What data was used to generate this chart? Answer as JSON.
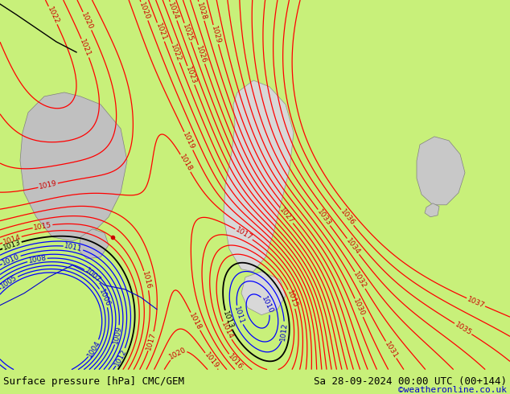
{
  "title_left": "Surface pressure [hPa] CMC/GEM",
  "title_right": "Sa 28-09-2024 00:00 UTC (00+144)",
  "credit": "©weatheronline.co.uk",
  "bg_color": "#c8f07a",
  "contour_color_red": "#ff0000",
  "contour_color_black": "#000000",
  "contour_color_blue": "#0000ff",
  "label_color_red": "#cc0000",
  "label_color_black": "#000000",
  "label_color_blue": "#0000cc",
  "credit_color": "#0000cc",
  "bottom_text_color": "#000000",
  "figsize": [
    6.34,
    4.9
  ],
  "dpi": 100,
  "font_size_bottom": 9,
  "font_size_credit": 8,
  "nx": 300,
  "ny": 300,
  "xlim": [
    0,
    634
  ],
  "ylim": [
    0,
    460
  ]
}
